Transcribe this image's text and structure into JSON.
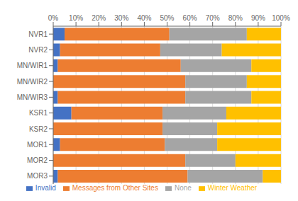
{
  "chart_data": {
    "type": "bar",
    "orientation": "horizontal",
    "stacked": true,
    "categories": [
      "NVR1",
      "NVR2",
      "MN/WIR1",
      "MN/WIR2",
      "MN/WIR3",
      "KSR1",
      "KSR2",
      "MOR1",
      "MOR2",
      "MOR3"
    ],
    "series": [
      {
        "name": "Invalid",
        "color": "#4472c4",
        "values": [
          5,
          3,
          2,
          0,
          2,
          8,
          0,
          3,
          0,
          2
        ]
      },
      {
        "name": "Messages from Other Sites",
        "color": "#ed7d31",
        "values": [
          46,
          44,
          54,
          58,
          56,
          40,
          48,
          46,
          58,
          57
        ]
      },
      {
        "name": "None",
        "color": "#a5a5a5",
        "values": [
          34,
          27,
          31,
          27,
          29,
          28,
          24,
          23,
          22,
          33
        ]
      },
      {
        "name": "Winter Weather",
        "color": "#ffc000",
        "values": [
          15,
          26,
          13,
          15,
          13,
          24,
          28,
          28,
          20,
          8
        ]
      }
    ],
    "xlim": [
      0,
      100
    ],
    "xticks": [
      {
        "value": 0,
        "label": "0%"
      },
      {
        "value": 10,
        "label": "10%"
      },
      {
        "value": 20,
        "label": "20%"
      },
      {
        "value": 30,
        "label": "30%"
      },
      {
        "value": 40,
        "label": "40%"
      },
      {
        "value": 50,
        "label": "50%"
      },
      {
        "value": 60,
        "label": "60%"
      },
      {
        "value": 70,
        "label": "70%"
      },
      {
        "value": 80,
        "label": "80%"
      },
      {
        "value": 90,
        "label": "90%"
      },
      {
        "value": 100,
        "label": "100%"
      }
    ],
    "grid": true,
    "legend": "bottom"
  }
}
